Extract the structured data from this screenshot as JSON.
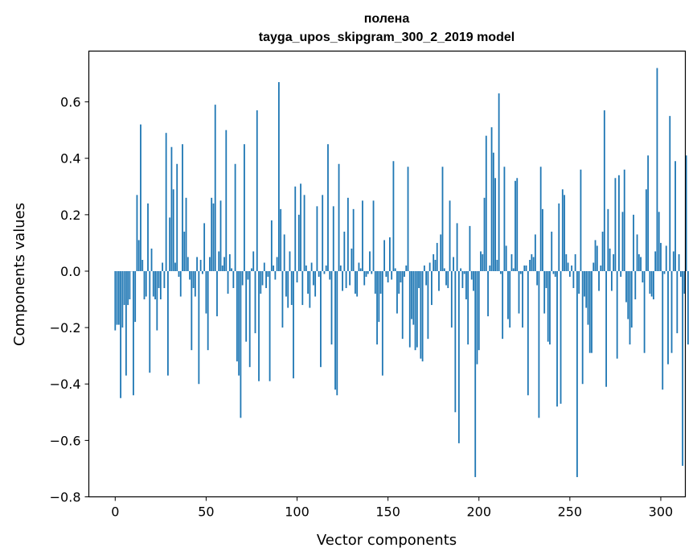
{
  "chart_data": {
    "type": "bar",
    "title": "полена",
    "subtitle": "tayga_upos_skipgram_300_2_2019 model",
    "xlabel": "Vector components",
    "ylabel": "Components values",
    "xlim": [
      -14.5,
      313.5
    ],
    "ylim": [
      -0.8,
      0.78
    ],
    "xticks": [
      0,
      50,
      100,
      150,
      200,
      250,
      300
    ],
    "yticks": [
      -0.8,
      -0.6,
      -0.4,
      -0.2,
      0.0,
      0.2,
      0.4,
      0.6
    ],
    "xtick_labels": [
      "0",
      "50",
      "100",
      "150",
      "200",
      "250",
      "300"
    ],
    "ytick_labels": [
      "−0.8",
      "−0.6",
      "−0.4",
      "−0.2",
      "0.0",
      "0.2",
      "0.4",
      "0.6"
    ],
    "bar_color": "#1f77b4",
    "values": [
      -0.21,
      -0.19,
      -0.19,
      -0.45,
      -0.2,
      -0.12,
      -0.37,
      -0.12,
      -0.1,
      0.0,
      -0.44,
      -0.18,
      0.27,
      0.11,
      0.52,
      0.04,
      -0.1,
      -0.09,
      0.24,
      -0.36,
      0.08,
      -0.09,
      -0.1,
      -0.21,
      -0.06,
      -0.1,
      0.03,
      -0.06,
      0.49,
      -0.37,
      0.19,
      0.44,
      0.29,
      0.03,
      0.38,
      -0.02,
      -0.09,
      0.45,
      0.14,
      0.26,
      0.05,
      -0.03,
      -0.28,
      -0.06,
      -0.09,
      0.05,
      -0.4,
      0.04,
      -0.01,
      0.17,
      -0.15,
      -0.28,
      0.05,
      0.26,
      0.24,
      0.59,
      -0.16,
      0.07,
      0.25,
      0.02,
      0.05,
      0.5,
      -0.08,
      0.06,
      0.01,
      -0.06,
      0.38,
      -0.32,
      -0.37,
      -0.52,
      -0.05,
      0.45,
      -0.25,
      -0.03,
      -0.34,
      0.01,
      0.07,
      -0.22,
      0.57,
      -0.39,
      -0.08,
      -0.05,
      0.03,
      -0.06,
      -0.02,
      -0.39,
      0.18,
      0.02,
      -0.03,
      0.05,
      0.67,
      0.22,
      -0.2,
      0.13,
      -0.09,
      -0.13,
      0.07,
      -0.12,
      -0.38,
      0.3,
      -0.04,
      0.2,
      0.31,
      -0.12,
      0.27,
      0.02,
      -0.08,
      -0.13,
      0.03,
      -0.05,
      -0.09,
      0.23,
      -0.02,
      -0.34,
      0.27,
      -0.01,
      0.02,
      0.45,
      -0.03,
      -0.26,
      0.23,
      -0.42,
      -0.44,
      0.38,
      0.02,
      -0.07,
      0.14,
      -0.06,
      0.26,
      -0.05,
      0.08,
      0.22,
      -0.08,
      -0.09,
      0.03,
      0.01,
      0.25,
      -0.05,
      -0.02,
      -0.01,
      0.07,
      -0.01,
      0.25,
      -0.08,
      -0.26,
      -0.18,
      -0.08,
      -0.37,
      0.11,
      -0.02,
      -0.04,
      0.12,
      -0.03,
      0.39,
      0.01,
      -0.15,
      -0.08,
      -0.04,
      -0.24,
      -0.02,
      0.02,
      0.37,
      -0.27,
      -0.17,
      -0.19,
      -0.28,
      -0.27,
      -0.06,
      -0.31,
      -0.32,
      0.02,
      -0.05,
      -0.24,
      0.03,
      -0.12,
      0.06,
      0.04,
      0.1,
      -0.07,
      0.13,
      0.37,
      0.01,
      -0.05,
      -0.06,
      0.25,
      -0.2,
      0.05,
      -0.5,
      0.17,
      -0.61,
      0.01,
      -0.06,
      -0.01,
      -0.1,
      -0.26,
      0.16,
      -0.03,
      -0.07,
      -0.73,
      -0.33,
      -0.28,
      0.07,
      0.06,
      0.26,
      0.48,
      -0.16,
      0.02,
      0.51,
      0.42,
      0.33,
      0.04,
      0.63,
      -0.01,
      -0.24,
      0.37,
      0.09,
      -0.17,
      -0.2,
      0.06,
      0.01,
      0.32,
      0.33,
      -0.15,
      -0.01,
      -0.2,
      0.02,
      0.02,
      -0.44,
      0.04,
      0.06,
      0.05,
      0.13,
      -0.05,
      -0.52,
      0.37,
      0.22,
      -0.15,
      -0.06,
      -0.25,
      -0.26,
      0.14,
      -0.01,
      -0.02,
      -0.48,
      0.24,
      -0.47,
      0.29,
      0.27,
      0.06,
      0.03,
      -0.02,
      0.02,
      -0.06,
      0.06,
      -0.73,
      -0.08,
      0.36,
      -0.4,
      -0.09,
      -0.13,
      -0.19,
      -0.29,
      -0.29,
      0.03,
      0.11,
      0.09,
      -0.07,
      0.02,
      0.14,
      0.57,
      -0.41,
      0.22,
      0.08,
      -0.07,
      0.06,
      0.33,
      -0.31,
      0.34,
      -0.02,
      0.21,
      0.36,
      -0.11,
      -0.17,
      -0.26,
      -0.2,
      0.2,
      -0.1,
      0.13,
      0.06,
      0.05,
      -0.04,
      -0.29,
      0.29,
      0.41,
      -0.08,
      -0.09,
      -0.1,
      0.07,
      0.72,
      0.21,
      0.1,
      -0.42,
      -0.01,
      0.09,
      -0.33,
      0.55,
      -0.29,
      0.07,
      0.39,
      -0.22,
      0.06,
      -0.02,
      -0.69,
      -0.08,
      0.41,
      -0.26
    ]
  }
}
